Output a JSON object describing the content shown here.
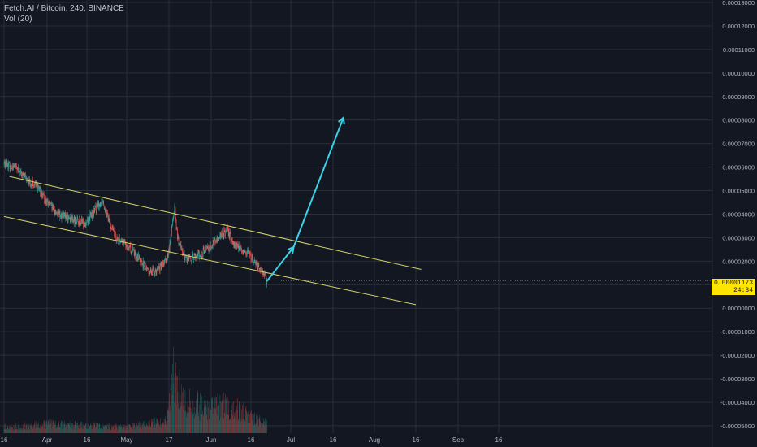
{
  "header": {
    "symbol_line": "Fetch.AI / Bitcoin, 240, BINANCE",
    "volume_line": "Vol (20)"
  },
  "last_price": {
    "value": "0.00001173",
    "countdown": "24:34"
  },
  "colors": {
    "background": "#131722",
    "grid": "#2a2e39",
    "channel": "#d4d46a",
    "arrow": "#3ad3e8",
    "candle_up": "#26a69a",
    "candle_down": "#ef5350",
    "price_tag": "#ffe600"
  },
  "chart_data": {
    "type": "candlestick",
    "title": "Fetch.AI / Bitcoin, 240, BINANCE",
    "x_axis": {
      "tick_labels": [
        "16",
        "Apr",
        "16",
        "May",
        "17",
        "Jun",
        "16",
        "Jul",
        "16",
        "Aug",
        "16",
        "Sep",
        "16"
      ]
    },
    "y_axis": {
      "ylim": [
        -5e-05,
        0.00013
      ],
      "tick_labels": [
        "0.00013000",
        "0.00012000",
        "0.00011000",
        "0.00010000",
        "0.00009000",
        "0.00008000",
        "0.00007000",
        "0.00006000",
        "0.00005000",
        "0.00004000",
        "0.00003000",
        "0.00002000",
        "0.00001000",
        "0.00000000",
        "-0.00001000",
        "-0.00002000",
        "-0.00003000",
        "-0.00004000",
        "-0.00005000"
      ]
    },
    "price_path": [
      [
        "Mar 16",
        6.15e-05
      ],
      [
        "Mar 20",
        6e-05
      ],
      [
        "Mar 24",
        5.5e-05
      ],
      [
        "Mar 28",
        5.2e-05
      ],
      [
        "Apr 1",
        4.5e-05
      ],
      [
        "Apr 5",
        4e-05
      ],
      [
        "Apr 10",
        3.8e-05
      ],
      [
        "Apr 15",
        3.6e-05
      ],
      [
        "Apr 18",
        4e-05
      ],
      [
        "Apr 22",
        4.6e-05
      ],
      [
        "Apr 24",
        3.8e-05
      ],
      [
        "Apr 27",
        3e-05
      ],
      [
        "May 1",
        2.7e-05
      ],
      [
        "May 5",
        2.2e-05
      ],
      [
        "May 9",
        1.6e-05
      ],
      [
        "May 12",
        1.6e-05
      ],
      [
        "May 16",
        2e-05
      ],
      [
        "May 17",
        2.4e-05
      ],
      [
        "May 19",
        4.3e-05
      ],
      [
        "May 20",
        3e-05
      ],
      [
        "May 23",
        2.1e-05
      ],
      [
        "May 27",
        2.2e-05
      ],
      [
        "May 31",
        2.6e-05
      ],
      [
        "Jun 3",
        2.9e-05
      ],
      [
        "Jun 7",
        3.3e-05
      ],
      [
        "Jun 10",
        2.7e-05
      ],
      [
        "Jun 14",
        2.4e-05
      ],
      [
        "Jun 18",
        1.9e-05
      ],
      [
        "Jun 22",
        1.15e-05
      ]
    ],
    "volume_profile": [
      [
        "Mar 16",
        0.1
      ],
      [
        "Apr 1",
        0.15
      ],
      [
        "Apr 16",
        0.12
      ],
      [
        "May 1",
        0.1
      ],
      [
        "May 16",
        0.2
      ],
      [
        "May 19",
        1.0
      ],
      [
        "May 22",
        0.5
      ],
      [
        "Jun 1",
        0.4
      ],
      [
        "Jun 8",
        0.45
      ],
      [
        "Jun 16",
        0.25
      ],
      [
        "Jun 22",
        0.15
      ]
    ],
    "annotations": {
      "channel_upper": [
        [
          "Mar 18",
          5.6e-05
        ],
        [
          "Aug 18",
          1.65e-05
        ]
      ],
      "channel_lower": [
        [
          "Mar 16",
          3.9e-05
        ],
        [
          "Aug 16",
          1.5e-06
        ]
      ],
      "arrow_1": [
        [
          "Jun 22",
          1.15e-05
        ],
        [
          "Jul 2",
          2.6e-05
        ]
      ],
      "arrow_2": [
        [
          "Jul 2",
          2.6e-05
        ],
        [
          "Jul 20",
          8.1e-05
        ]
      ]
    },
    "grid": true,
    "legend": "top-left"
  }
}
